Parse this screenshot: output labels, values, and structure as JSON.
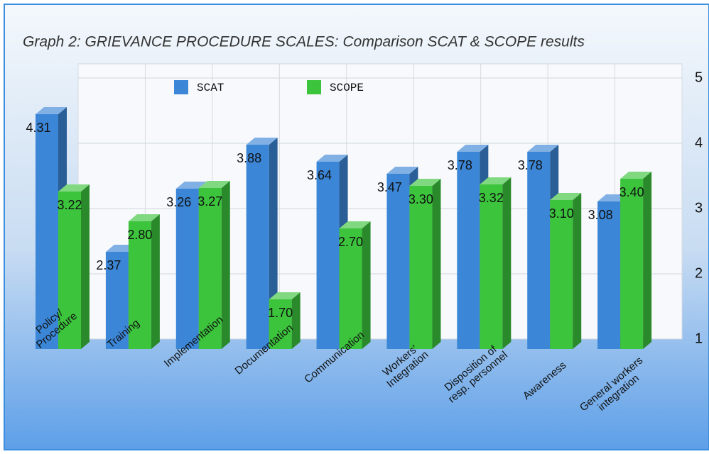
{
  "chart_data": {
    "type": "bar3d",
    "title": "Graph 2: GRIEVANCE PROCEDURE SCALES: Comparison SCAT & SCOPE results",
    "categories": [
      "Policy/\nProcedure",
      "Training",
      "Implementation",
      "Documentation",
      "Communication",
      "Workers'\nIntegration",
      "Disposition of\nresp. personnel",
      "Awareness",
      "General workers\nintegration"
    ],
    "series": [
      {
        "name": "SCAT",
        "color": "#3b86d6",
        "values": [
          4.31,
          2.37,
          3.26,
          3.88,
          3.64,
          3.47,
          3.78,
          3.78,
          3.08
        ],
        "value_labels": [
          "4.31",
          "2.37",
          "3.26",
          "3.88",
          "3.64",
          "3.47",
          "3.78",
          "3.78",
          "3.08"
        ]
      },
      {
        "name": "SCOPE",
        "color": "#3cc43c",
        "values": [
          3.22,
          2.8,
          3.27,
          1.7,
          2.7,
          3.3,
          3.32,
          3.1,
          3.4
        ],
        "value_labels": [
          "3.22",
          "2.80",
          "3.27",
          "1.70",
          "2.70",
          "3.30",
          "3.32",
          "3.10",
          "3.40"
        ]
      }
    ],
    "ylim": [
      1,
      5
    ],
    "yticks": [
      1,
      2,
      3,
      4,
      5
    ],
    "grid": true,
    "legend": "top"
  }
}
